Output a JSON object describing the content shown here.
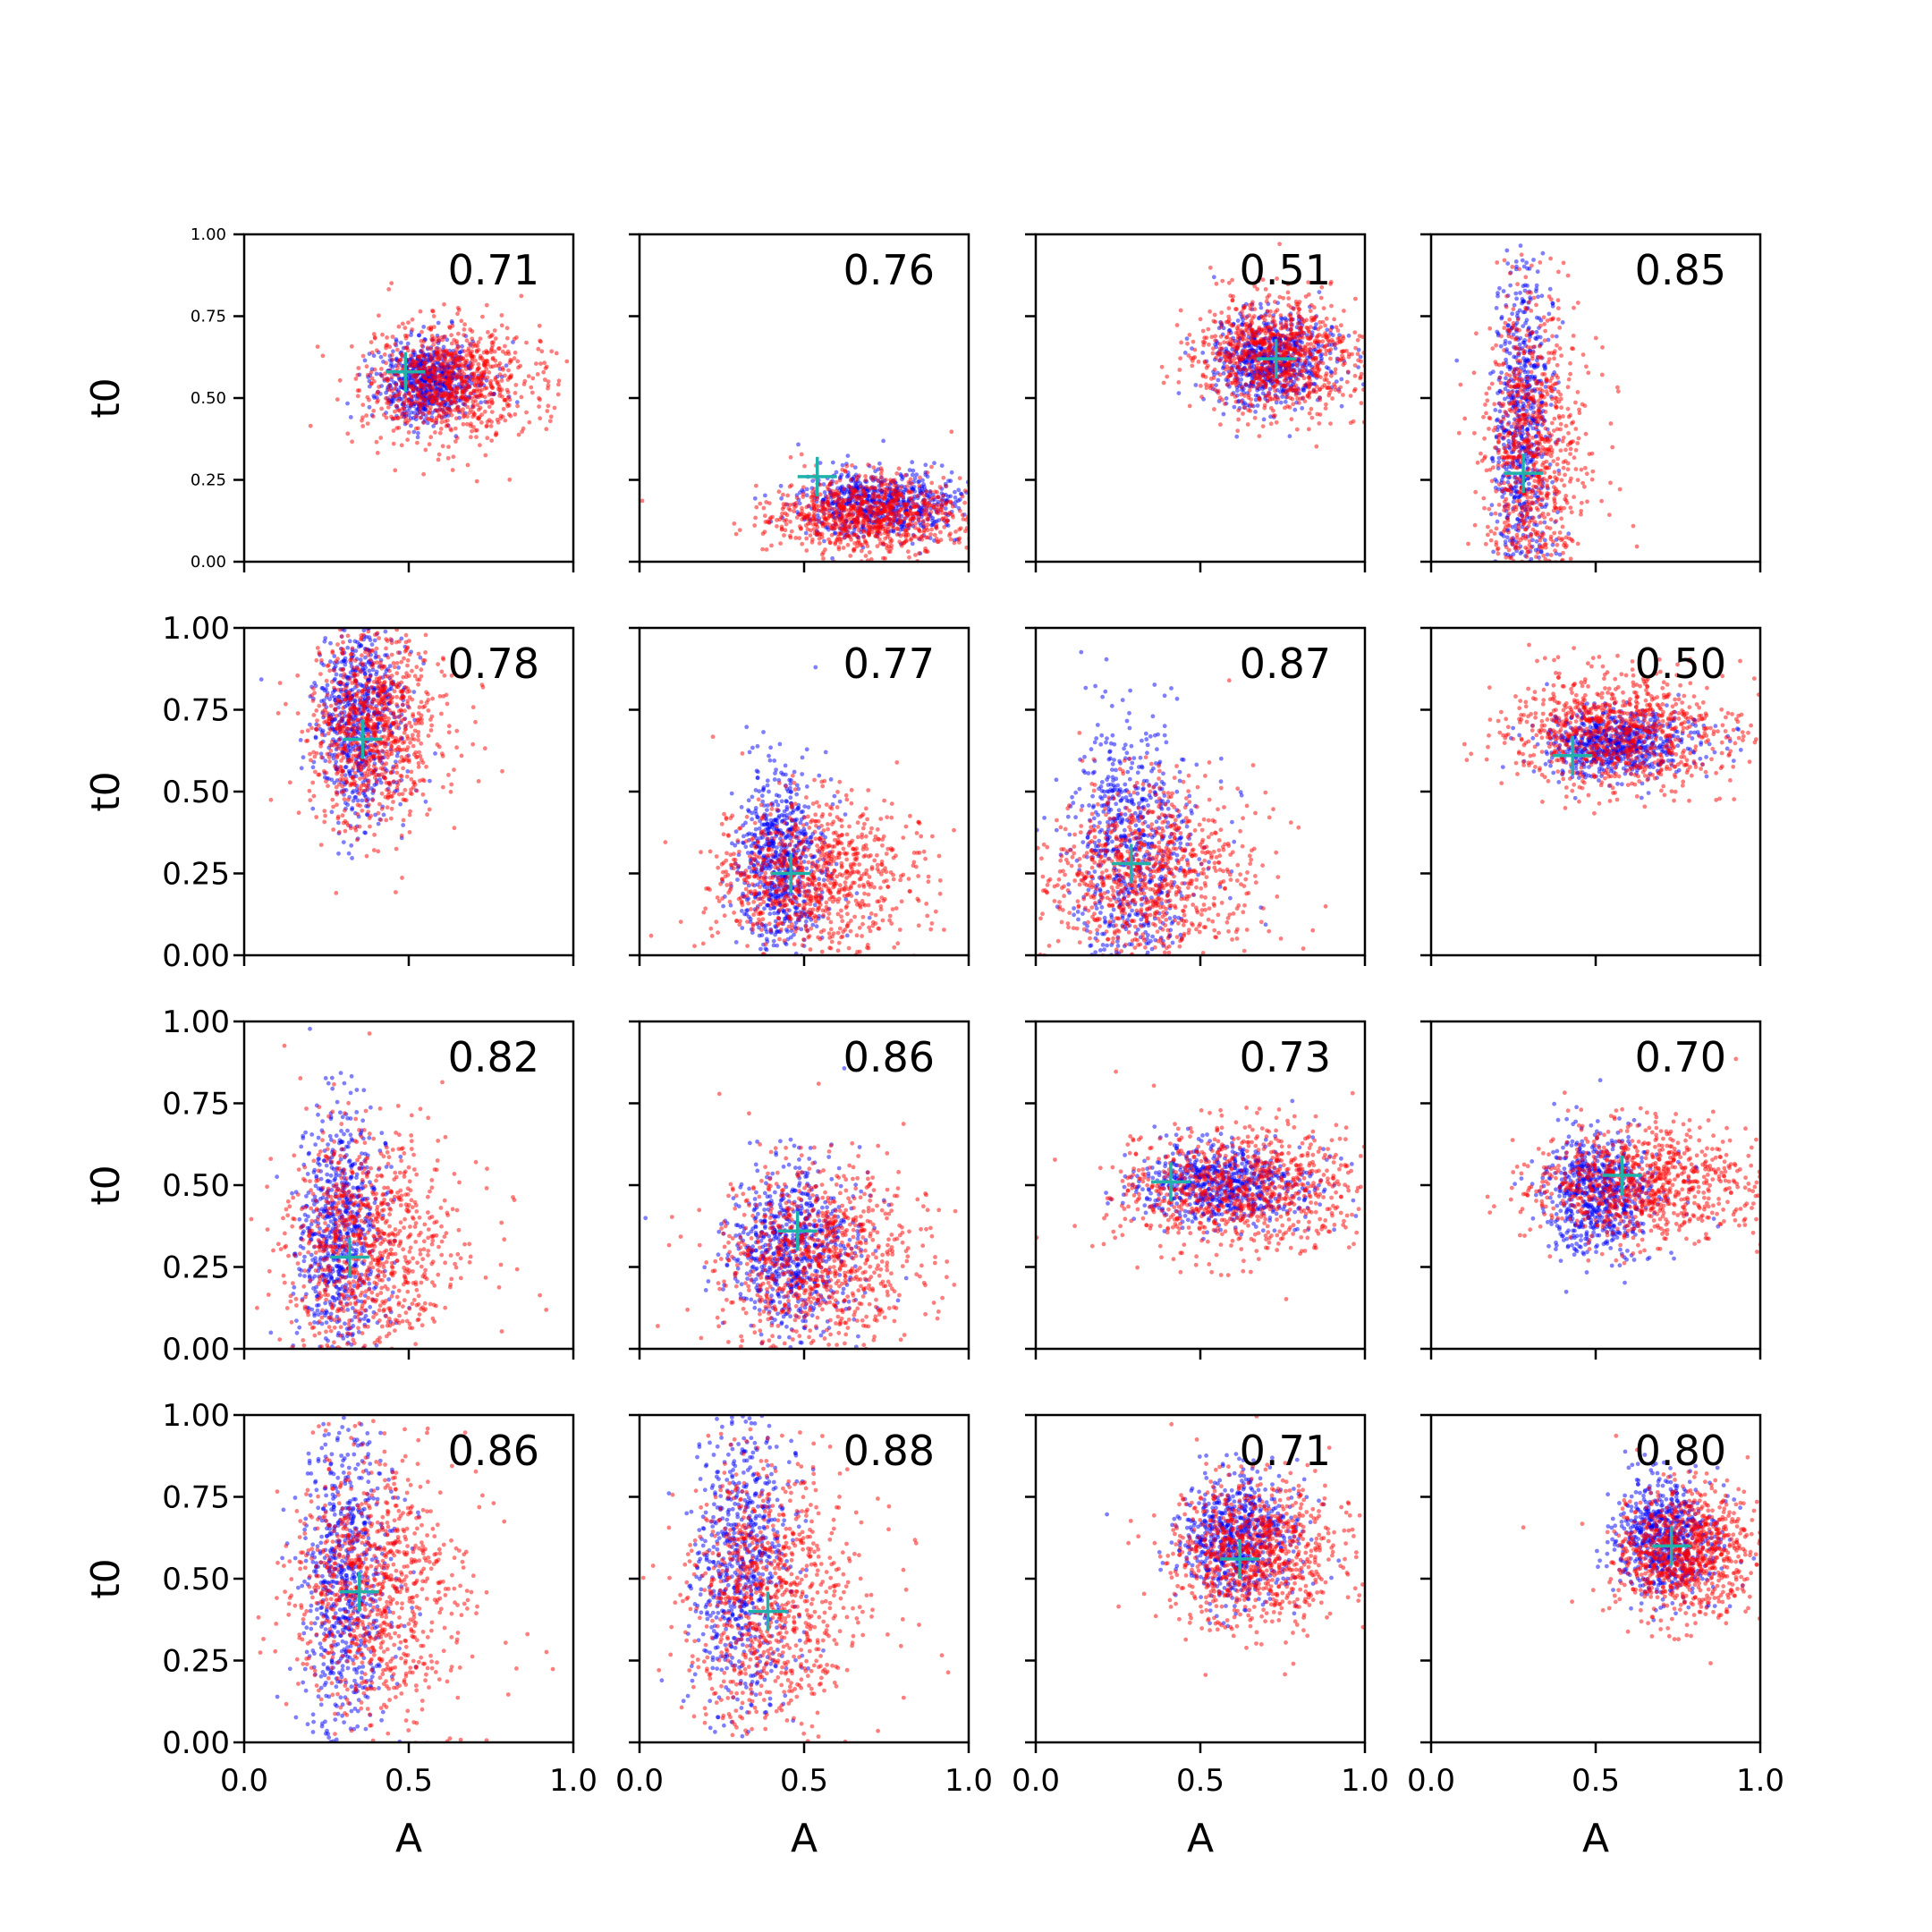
{
  "chart_data": {
    "type": "scatter",
    "layout": {
      "rows": 4,
      "cols": 4
    },
    "xlabel": "A",
    "ylabel": "t0",
    "xlim": [
      0,
      1
    ],
    "ylim": [
      0,
      1
    ],
    "xticks": [
      "0.0",
      "0.5",
      "1.0"
    ],
    "yticks": [
      "0.00",
      "0.25",
      "0.50",
      "0.75",
      "1.00"
    ],
    "colors": {
      "series_a": "#0000ff",
      "series_b": "#ff0000",
      "marker": "#20b2aa"
    },
    "panels": [
      {
        "label": "0.71",
        "marker": [
          0.49,
          0.58
        ],
        "blue": {
          "cx": 0.55,
          "cy": 0.55,
          "sx": 0.07,
          "sy": 0.06
        },
        "red": {
          "cx": 0.6,
          "cy": 0.55,
          "sx": 0.12,
          "sy": 0.09
        }
      },
      {
        "label": "0.76",
        "marker": [
          0.54,
          0.26
        ],
        "blue": {
          "cx": 0.72,
          "cy": 0.18,
          "sx": 0.12,
          "sy": 0.05
        },
        "red": {
          "cx": 0.68,
          "cy": 0.14,
          "sx": 0.14,
          "sy": 0.06
        }
      },
      {
        "label": "0.51",
        "marker": [
          0.73,
          0.62
        ],
        "blue": {
          "cx": 0.7,
          "cy": 0.62,
          "sx": 0.08,
          "sy": 0.07
        },
        "red": {
          "cx": 0.72,
          "cy": 0.63,
          "sx": 0.12,
          "sy": 0.09
        }
      },
      {
        "label": "0.85",
        "marker": [
          0.28,
          0.27
        ],
        "blue": {
          "cx": 0.27,
          "cy": 0.4,
          "sx": 0.04,
          "sy": 0.28
        },
        "red": {
          "cx": 0.3,
          "cy": 0.33,
          "sx": 0.07,
          "sy": 0.24
        }
      },
      {
        "label": "0.78",
        "marker": [
          0.36,
          0.66
        ],
        "blue": {
          "cx": 0.34,
          "cy": 0.72,
          "sx": 0.06,
          "sy": 0.16
        },
        "red": {
          "cx": 0.38,
          "cy": 0.7,
          "sx": 0.09,
          "sy": 0.15
        }
      },
      {
        "label": "0.77",
        "marker": [
          0.46,
          0.25
        ],
        "blue": {
          "cx": 0.42,
          "cy": 0.28,
          "sx": 0.06,
          "sy": 0.14
        },
        "red": {
          "cx": 0.5,
          "cy": 0.24,
          "sx": 0.14,
          "sy": 0.12
        }
      },
      {
        "label": "0.87",
        "marker": [
          0.29,
          0.28
        ],
        "blue": {
          "cx": 0.28,
          "cy": 0.33,
          "sx": 0.09,
          "sy": 0.2
        },
        "red": {
          "cx": 0.32,
          "cy": 0.24,
          "sx": 0.14,
          "sy": 0.14
        }
      },
      {
        "label": "0.50",
        "marker": [
          0.43,
          0.61
        ],
        "blue": {
          "cx": 0.55,
          "cy": 0.65,
          "sx": 0.1,
          "sy": 0.05
        },
        "red": {
          "cx": 0.55,
          "cy": 0.68,
          "sx": 0.16,
          "sy": 0.09
        }
      },
      {
        "label": "0.82",
        "marker": [
          0.32,
          0.28
        ],
        "blue": {
          "cx": 0.28,
          "cy": 0.35,
          "sx": 0.06,
          "sy": 0.2
        },
        "red": {
          "cx": 0.36,
          "cy": 0.32,
          "sx": 0.12,
          "sy": 0.17
        }
      },
      {
        "label": "0.86",
        "marker": [
          0.48,
          0.36
        ],
        "blue": {
          "cx": 0.45,
          "cy": 0.3,
          "sx": 0.09,
          "sy": 0.13
        },
        "red": {
          "cx": 0.52,
          "cy": 0.28,
          "sx": 0.14,
          "sy": 0.14
        }
      },
      {
        "label": "0.73",
        "marker": [
          0.41,
          0.51
        ],
        "blue": {
          "cx": 0.55,
          "cy": 0.5,
          "sx": 0.12,
          "sy": 0.06
        },
        "red": {
          "cx": 0.6,
          "cy": 0.49,
          "sx": 0.18,
          "sy": 0.1
        }
      },
      {
        "label": "0.70",
        "marker": [
          0.58,
          0.53
        ],
        "blue": {
          "cx": 0.5,
          "cy": 0.48,
          "sx": 0.08,
          "sy": 0.09
        },
        "red": {
          "cx": 0.62,
          "cy": 0.5,
          "sx": 0.16,
          "sy": 0.09
        }
      },
      {
        "label": "0.86",
        "marker": [
          0.35,
          0.46
        ],
        "blue": {
          "cx": 0.3,
          "cy": 0.5,
          "sx": 0.06,
          "sy": 0.24
        },
        "red": {
          "cx": 0.38,
          "cy": 0.46,
          "sx": 0.12,
          "sy": 0.2
        }
      },
      {
        "label": "0.88",
        "marker": [
          0.39,
          0.4
        ],
        "blue": {
          "cx": 0.3,
          "cy": 0.55,
          "sx": 0.07,
          "sy": 0.24
        },
        "red": {
          "cx": 0.38,
          "cy": 0.45,
          "sx": 0.12,
          "sy": 0.2
        }
      },
      {
        "label": "0.71",
        "marker": [
          0.62,
          0.56
        ],
        "blue": {
          "cx": 0.6,
          "cy": 0.62,
          "sx": 0.08,
          "sy": 0.1
        },
        "red": {
          "cx": 0.65,
          "cy": 0.58,
          "sx": 0.12,
          "sy": 0.11
        }
      },
      {
        "label": "0.80",
        "marker": [
          0.73,
          0.6
        ],
        "blue": {
          "cx": 0.7,
          "cy": 0.62,
          "sx": 0.07,
          "sy": 0.09
        },
        "red": {
          "cx": 0.76,
          "cy": 0.58,
          "sx": 0.1,
          "sy": 0.1
        }
      }
    ]
  }
}
